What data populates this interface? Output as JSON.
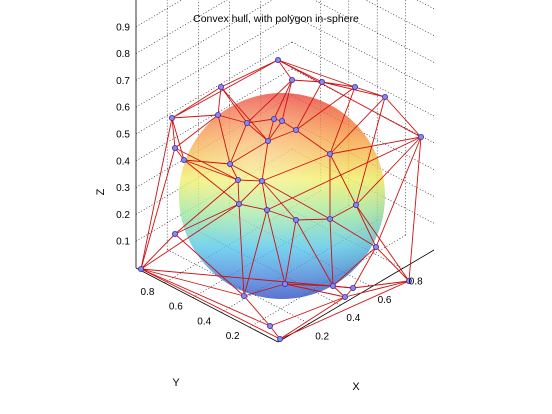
{
  "chart_data": {
    "type": "3d-surface",
    "title": "Convex hull, with polygon in-sphere",
    "xlabel": "X",
    "ylabel": "Y",
    "zlabel": "Z",
    "x_ticks": [
      "0.2",
      "0.4",
      "0.6",
      "0.8"
    ],
    "y_ticks": [
      "0.2",
      "0.4",
      "0.6",
      "0.8"
    ],
    "z_ticks": [
      "0.1",
      "0.2",
      "0.3",
      "0.4",
      "0.5",
      "0.6",
      "0.7",
      "0.8",
      "0.9"
    ],
    "xlim": [
      0,
      1
    ],
    "ylim": [
      0,
      1
    ],
    "zlim": [
      0,
      1
    ],
    "grid": true,
    "view": "isometric",
    "hull_color": "#cc0000",
    "vertex_color": "#6a5acd",
    "sphere_colormap": "jet",
    "series": [
      {
        "type": "hull-vertices",
        "points_approx": [
          [
            0.05,
            0.95,
            0.1
          ],
          [
            0.95,
            0.05,
            0.1
          ],
          [
            0.95,
            0.95,
            0.95
          ],
          [
            0.05,
            0.05,
            0.1
          ],
          [
            0.5,
            0.5,
            0.95
          ],
          [
            0.9,
            0.9,
            0.6
          ],
          [
            0.1,
            0.85,
            0.9
          ],
          [
            0.85,
            0.1,
            0.9
          ],
          [
            0.5,
            0.5,
            0.05
          ],
          [
            0.2,
            0.2,
            0.1
          ],
          [
            0.8,
            0.8,
            0.2
          ],
          [
            0.3,
            0.7,
            0.5
          ]
        ]
      },
      {
        "type": "inscribed-sphere",
        "center": [
          0.5,
          0.5,
          0.5
        ],
        "radius": 0.4
      }
    ]
  }
}
